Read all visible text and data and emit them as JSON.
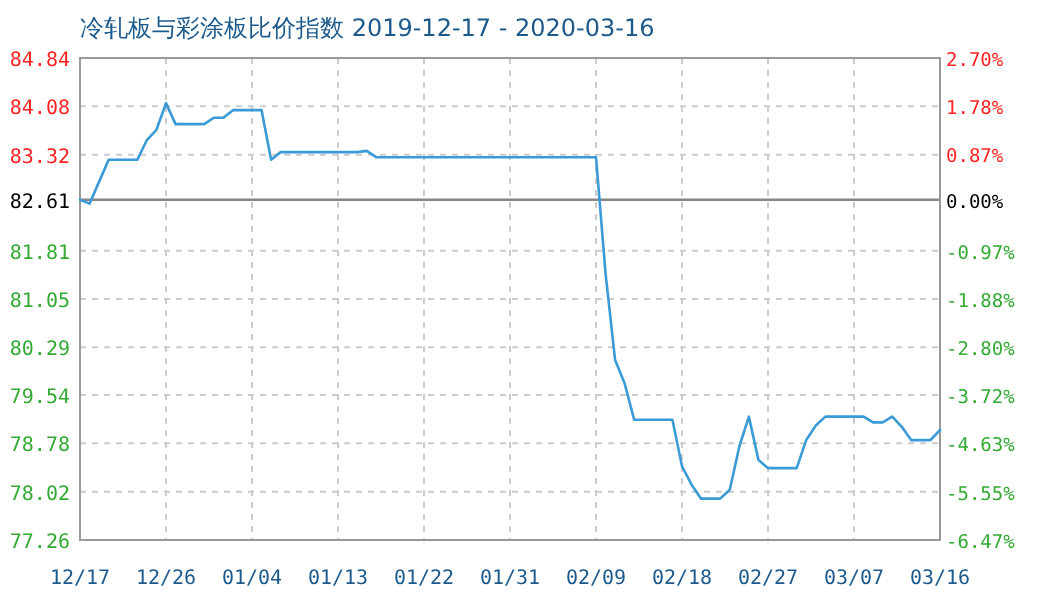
{
  "chart_data": {
    "type": "line",
    "title": "冷轧板与彩涂板比价指数 2019-12-17 - 2020-03-16",
    "x": [
      "2019-12-17",
      "2019-12-18",
      "2019-12-20",
      "2019-12-23",
      "2019-12-24",
      "2019-12-25",
      "2019-12-26",
      "2019-12-27",
      "2019-12-30",
      "2019-12-31",
      "2020-01-01",
      "2020-01-02",
      "2020-01-05",
      "2020-01-06",
      "2020-01-07",
      "2020-01-15",
      "2020-01-16",
      "2020-01-17",
      "2020-02-09",
      "2020-02-10",
      "2020-02-11",
      "2020-02-12",
      "2020-02-13",
      "2020-02-17",
      "2020-02-18",
      "2020-02-19",
      "2020-02-20",
      "2020-02-22",
      "2020-02-23",
      "2020-02-24",
      "2020-02-25",
      "2020-02-26",
      "2020-02-27",
      "2020-03-01",
      "2020-03-02",
      "2020-03-03",
      "2020-03-04",
      "2020-03-08",
      "2020-03-09",
      "2020-03-10",
      "2020-03-11",
      "2020-03-12",
      "2020-03-13",
      "2020-03-15",
      "2020-03-16"
    ],
    "series": [
      {
        "color": "#3a9bd6",
        "values": [
          82.61,
          82.55,
          83.24,
          83.24,
          83.55,
          83.71,
          84.13,
          83.8,
          83.8,
          83.9,
          83.9,
          84.02,
          84.02,
          83.24,
          83.36,
          83.36,
          83.38,
          83.28,
          83.28,
          81.45,
          80.09,
          79.72,
          79.15,
          79.15,
          78.42,
          78.13,
          77.91,
          77.91,
          78.05,
          78.73,
          79.2,
          78.52,
          78.39,
          78.39,
          78.83,
          79.06,
          79.2,
          79.2,
          79.11,
          79.11,
          79.2,
          79.04,
          78.83,
          78.83,
          78.99
        ]
      }
    ],
    "xlim": [
      "2019-12-17",
      "2020-03-16"
    ],
    "xticks": [
      {
        "value": "2019-12-17",
        "label": "12/17"
      },
      {
        "value": "2019-12-26",
        "label": "12/26"
      },
      {
        "value": "2020-01-04",
        "label": "01/04"
      },
      {
        "value": "2020-01-13",
        "label": "01/13"
      },
      {
        "value": "2020-01-22",
        "label": "01/22"
      },
      {
        "value": "2020-01-31",
        "label": "01/31"
      },
      {
        "value": "2020-02-09",
        "label": "02/09"
      },
      {
        "value": "2020-02-18",
        "label": "02/18"
      },
      {
        "value": "2020-02-27",
        "label": "02/27"
      },
      {
        "value": "2020-03-07",
        "label": "03/07"
      },
      {
        "value": "2020-03-16",
        "label": "03/16"
      }
    ],
    "ylim": [
      77.26,
      84.84
    ],
    "yticks": [
      84.84,
      84.08,
      83.32,
      82.61,
      81.81,
      81.05,
      80.29,
      79.54,
      78.78,
      78.02,
      77.26
    ],
    "y2lim": [
      -6.47,
      2.7
    ],
    "y2ticks": [
      {
        "value": 2.7,
        "label": "2.70%"
      },
      {
        "value": 1.78,
        "label": "1.78%"
      },
      {
        "value": 0.87,
        "label": "0.87%"
      },
      {
        "value": 0,
        "label": "0.00%"
      },
      {
        "value": -0.97,
        "label": "-0.97%"
      },
      {
        "value": -1.88,
        "label": "-1.88%"
      },
      {
        "value": -2.8,
        "label": "-2.80%"
      },
      {
        "value": -3.72,
        "label": "-3.72%"
      },
      {
        "value": -4.63,
        "label": "-4.63%"
      },
      {
        "value": -5.55,
        "label": "-5.55%"
      },
      {
        "value": -6.47,
        "label": "-6.47%"
      }
    ],
    "ref_lines": [
      {
        "axis": "y",
        "value": 82.61,
        "color": "#888888",
        "line_style": "solid"
      }
    ],
    "grid": true,
    "line_style": "solid",
    "marker": "none"
  }
}
